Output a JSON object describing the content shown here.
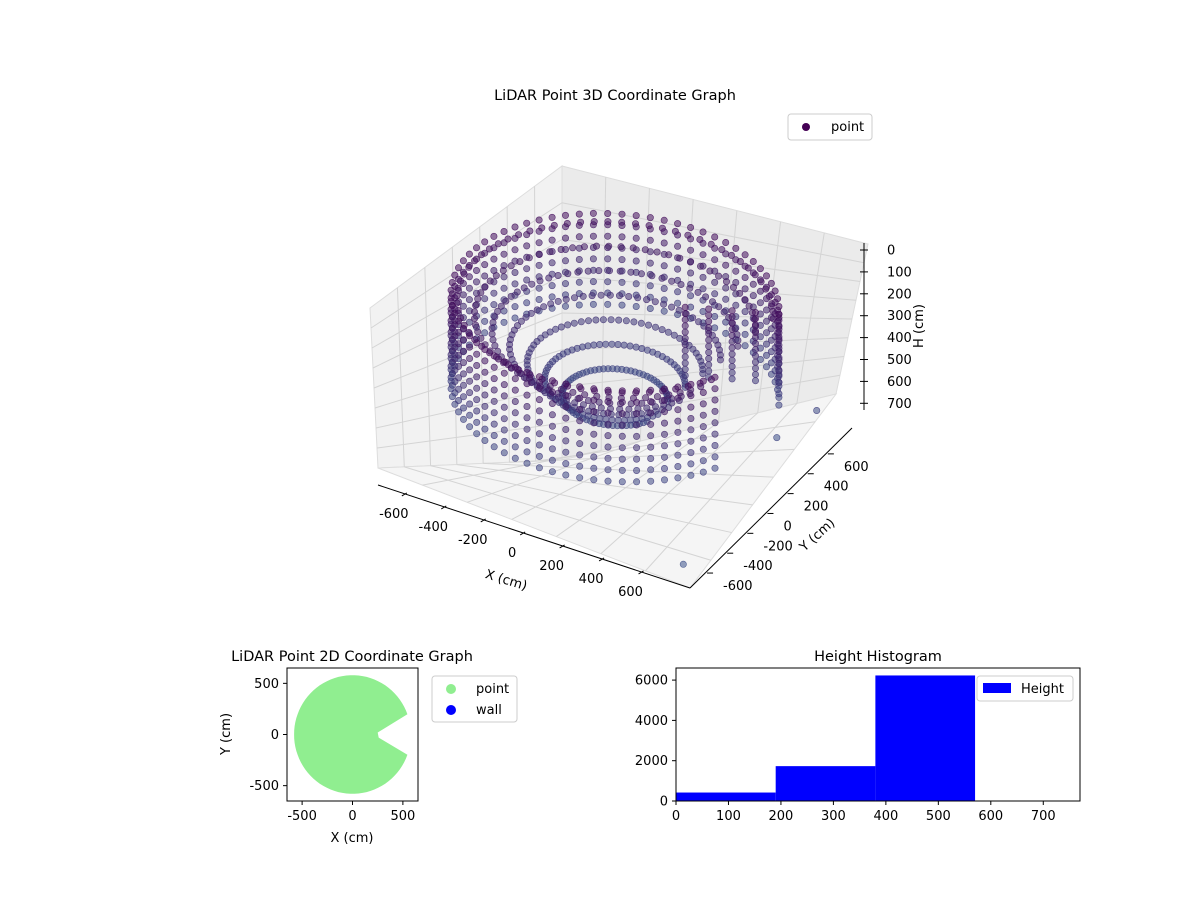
{
  "chart_data": [
    {
      "type": "scatter",
      "projection": "3d",
      "title": "LiDAR Point 3D Coordinate Graph",
      "xlabel": "X (cm)",
      "ylabel": "Y (cm)",
      "zlabel": "H (cm)",
      "xlim": [
        -650,
        650
      ],
      "ylim": [
        -650,
        650
      ],
      "zlim": [
        0,
        750
      ],
      "z_inverted": true,
      "x_ticks": [
        "-600",
        "-400",
        "-200",
        "0",
        "200",
        "400",
        "600"
      ],
      "y_ticks": [
        "-600",
        "-400",
        "-200",
        "0",
        "200",
        "400",
        "600"
      ],
      "z_ticks": [
        "0",
        "100",
        "200",
        "300",
        "400",
        "500",
        "600",
        "700"
      ],
      "grid": true,
      "legend": {
        "placement": "top-right",
        "entries": [
          {
            "label": "point",
            "color": "#440154"
          }
        ]
      },
      "series": [
        {
          "name": "point",
          "shape": "annular ring of points, open wedge toward +X",
          "inner_radius": 180,
          "outer_radius": 560,
          "h_range": [
            100,
            560
          ],
          "gap_angle_deg": [
            -25,
            25
          ],
          "colormap": "viridis",
          "color_low": "#440154",
          "color_high": "#3b528b",
          "outliers": [
            {
              "x": 600,
              "y": -650,
              "h": 700
            },
            {
              "x": 620,
              "y": 300,
              "h": 560
            },
            {
              "x": 560,
              "y": 120,
              "h": 600
            }
          ]
        }
      ]
    },
    {
      "type": "scatter",
      "title": "LiDAR Point 2D Coordinate Graph",
      "xlabel": "X (cm)",
      "ylabel": "Y (cm)",
      "xlim": [
        -650,
        650
      ],
      "ylim": [
        -650,
        650
      ],
      "x_ticks": [
        "-500",
        "0",
        "500"
      ],
      "y_ticks": [
        "500",
        "0",
        "-500"
      ],
      "legend": {
        "placement": "outside-right",
        "entries": [
          {
            "label": "point",
            "color": "#90ee90"
          },
          {
            "label": "wall",
            "color": "#0000ff"
          }
        ]
      },
      "series": [
        {
          "name": "point",
          "color": "#90ee90",
          "shape": "disc of radius 580 with wedge gap toward +X"
        },
        {
          "name": "wall",
          "color": "#0000ff",
          "points": []
        }
      ]
    },
    {
      "type": "bar",
      "title": "Height Histogram",
      "xlim": [
        0,
        770
      ],
      "ylim": [
        0,
        6600
      ],
      "x_ticks": [
        "0",
        "100",
        "200",
        "300",
        "400",
        "500",
        "600",
        "700"
      ],
      "y_ticks": [
        "0",
        "2000",
        "4000",
        "6000"
      ],
      "legend": {
        "placement": "top-right",
        "entries": [
          {
            "label": "Height",
            "color": "#0000ff"
          }
        ]
      },
      "series": [
        {
          "name": "Height",
          "color": "#0000ff",
          "bins": [
            {
              "x0": 0,
              "x1": 190,
              "count": 420
            },
            {
              "x0": 190,
              "x1": 380,
              "count": 1730
            },
            {
              "x0": 380,
              "x1": 570,
              "count": 6230
            }
          ]
        }
      ]
    }
  ]
}
